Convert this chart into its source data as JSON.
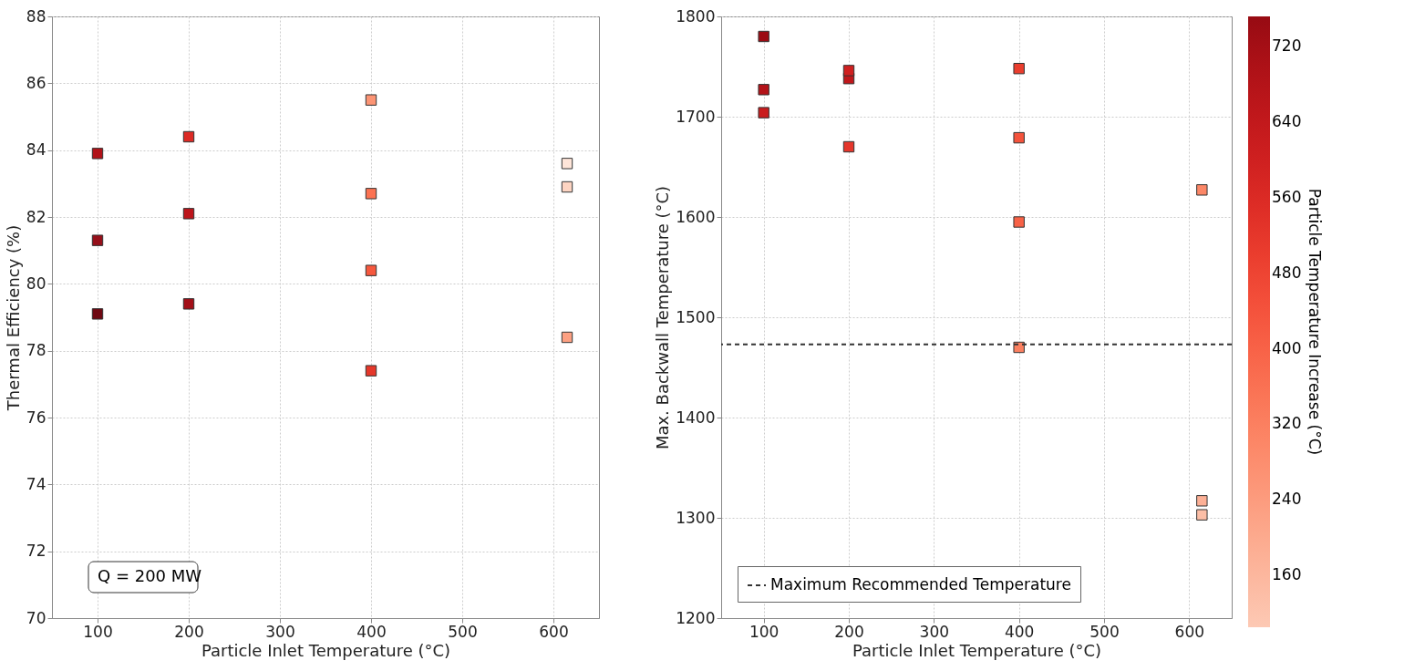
{
  "chart_data": [
    {
      "type": "scatter",
      "xlabel": "Particle Inlet Temperature (°C)",
      "ylabel": "Thermal Efficiency (%)",
      "marker": "square",
      "grid": true,
      "xlim": [
        50,
        650
      ],
      "xticks": [
        100,
        200,
        300,
        400,
        500,
        600
      ],
      "ylim": [
        70,
        88
      ],
      "yticks": [
        70,
        72,
        74,
        76,
        78,
        80,
        82,
        84,
        86,
        88
      ],
      "annotations": [
        "Q = 200 MW"
      ],
      "x": [
        100,
        100,
        100,
        200,
        200,
        200,
        400,
        400,
        400,
        400,
        615,
        615,
        615
      ],
      "values": [
        83.9,
        81.3,
        79.1,
        84.4,
        82.1,
        79.4,
        85.5,
        82.7,
        80.4,
        77.4,
        83.6,
        82.9,
        78.4
      ],
      "colors": [
        "#b11218",
        "#96101a",
        "#6f0812",
        "#dc2a25",
        "#bd151b",
        "#a30f18",
        "#fc9474",
        "#fb7252",
        "#f6583e",
        "#e5372a",
        "#fee5d9",
        "#fdd4c2",
        "#fca082"
      ]
    },
    {
      "type": "scatter",
      "xlabel": "Particle Inlet Temperature (°C)",
      "ylabel": "Max. Backwall Temperature (°C)",
      "marker": "square",
      "grid": true,
      "xlim": [
        50,
        650
      ],
      "xticks": [
        100,
        200,
        300,
        400,
        500,
        600
      ],
      "ylim": [
        1200,
        1800
      ],
      "yticks": [
        1200,
        1300,
        1400,
        1500,
        1600,
        1700,
        1800
      ],
      "x": [
        100,
        100,
        100,
        200,
        200,
        200,
        400,
        400,
        400,
        400,
        615,
        615,
        615
      ],
      "values": [
        1704,
        1727,
        1780,
        1670,
        1738,
        1746,
        1470,
        1595,
        1679,
        1748,
        1303,
        1317,
        1627
      ],
      "cvalues": [
        620,
        680,
        740,
        520,
        650,
        600,
        320,
        400,
        440,
        500,
        140,
        180,
        300
      ],
      "ref_lines": [
        {
          "axis": "y",
          "value": 1473,
          "label": "Maximum Recommended Temperature",
          "color": "#333333",
          "line_style": "dashed"
        }
      ],
      "legend": "bottom left",
      "clabel": "Particle Temperature Increase (°C)",
      "clim": [
        105,
        752
      ],
      "cticks": [
        160,
        240,
        320,
        400,
        480,
        560,
        640,
        720
      ]
    }
  ]
}
